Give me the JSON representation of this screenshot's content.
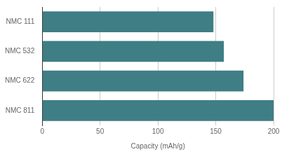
{
  "chart_data": {
    "type": "bar",
    "orientation": "horizontal",
    "categories": [
      "NMC 111",
      "NMC 532",
      "NMC 622",
      "NMC 811"
    ],
    "values": [
      148,
      157,
      174,
      200
    ],
    "color": "#3f7e85",
    "xlabel": "Capacity (mAh/g)",
    "xlim": [
      0,
      200
    ],
    "xticks": [
      0,
      50,
      100,
      150,
      200
    ],
    "grid": true
  }
}
